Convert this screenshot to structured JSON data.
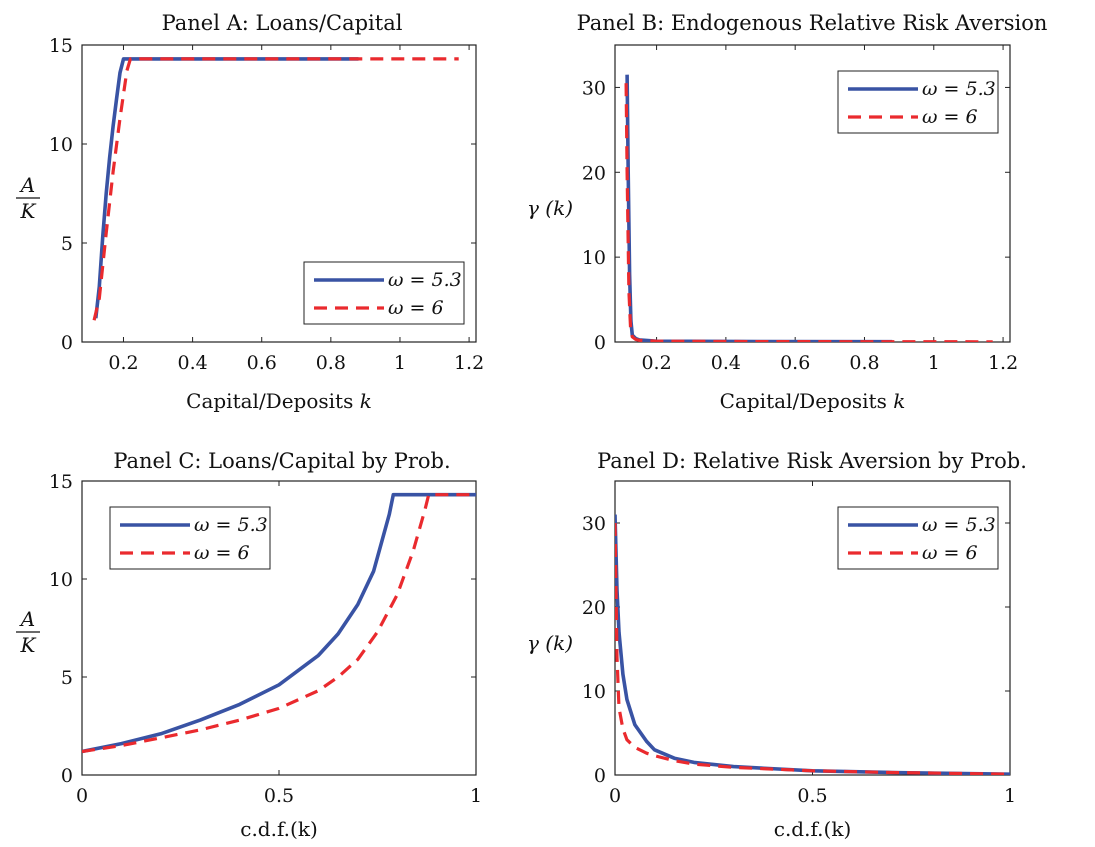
{
  "colors": {
    "series_1": "#3953a4",
    "series_2": "#ea2a2e"
  },
  "chart_data": [
    {
      "id": "panel-a",
      "type": "line",
      "title": "Panel A: Loans/Capital",
      "xlabel": "Capital/Deposits",
      "xlabel_var": "k",
      "ylabel_num": "A",
      "ylabel_den": "K",
      "xlim": [
        0.08,
        1.22
      ],
      "ylim": [
        0,
        15
      ],
      "xticks": [
        0.2,
        0.4,
        0.6,
        0.8,
        1,
        1.2
      ],
      "yticks": [
        0,
        5,
        10,
        15
      ],
      "grid": false,
      "legend_position": "bottom-right",
      "series": [
        {
          "name": "ω = 5.3",
          "style": "solid",
          "x": [
            0.12,
            0.13,
            0.14,
            0.15,
            0.16,
            0.17,
            0.18,
            0.19,
            0.2,
            0.4,
            0.6,
            0.88
          ],
          "y": [
            1.2,
            2.8,
            5.3,
            7.5,
            9.3,
            10.9,
            12.3,
            13.6,
            14.3,
            14.3,
            14.3,
            14.3
          ]
        },
        {
          "name": "ω = 6",
          "style": "dashed",
          "x": [
            0.115,
            0.13,
            0.15,
            0.17,
            0.19,
            0.21,
            0.22,
            0.5,
            0.8,
            1.17
          ],
          "y": [
            1.1,
            2.2,
            5.5,
            8.6,
            11.3,
            13.7,
            14.3,
            14.3,
            14.3,
            14.3
          ]
        }
      ]
    },
    {
      "id": "panel-b",
      "type": "line",
      "title": "Panel B: Endogenous Relative Risk Aversion",
      "xlabel": "Capital/Deposits",
      "xlabel_var": "k",
      "ylabel": "γ (k)",
      "xlim": [
        0.08,
        1.22
      ],
      "ylim": [
        0,
        35
      ],
      "xticks": [
        0.2,
        0.4,
        0.6,
        0.8,
        1,
        1.2
      ],
      "yticks": [
        0,
        10,
        20,
        30
      ],
      "grid": false,
      "legend_position": "top-right",
      "series": [
        {
          "name": "ω = 5.3",
          "style": "solid",
          "x": [
            0.115,
            0.118,
            0.122,
            0.126,
            0.13,
            0.14,
            0.15,
            0.2,
            0.5,
            0.88
          ],
          "y": [
            31.5,
            20,
            8,
            2.5,
            0.8,
            0.4,
            0.25,
            0.1,
            0.05,
            0.03
          ]
        },
        {
          "name": "ω = 6",
          "style": "dashed",
          "x": [
            0.112,
            0.115,
            0.12,
            0.125,
            0.13,
            0.14,
            0.15,
            0.2,
            0.5,
            1.17
          ],
          "y": [
            30.5,
            20,
            6,
            1.5,
            0.6,
            0.3,
            0.2,
            0.1,
            0.05,
            0.02
          ]
        }
      ]
    },
    {
      "id": "panel-c",
      "type": "line",
      "title": "Panel C: Loans/Capital by Prob.",
      "xlabel": "c.d.f.(k)",
      "ylabel_num": "A",
      "ylabel_den": "K",
      "xlim": [
        0,
        1
      ],
      "ylim": [
        0,
        15
      ],
      "xticks": [
        0,
        0.5,
        1
      ],
      "yticks": [
        0,
        5,
        10,
        15
      ],
      "grid": false,
      "legend_position": "top-left",
      "series": [
        {
          "name": "ω = 5.3",
          "style": "solid",
          "x": [
            0,
            0.1,
            0.2,
            0.3,
            0.4,
            0.5,
            0.6,
            0.65,
            0.7,
            0.74,
            0.78,
            0.79,
            0.85,
            0.9,
            1
          ],
          "y": [
            1.2,
            1.6,
            2.1,
            2.8,
            3.6,
            4.6,
            6.1,
            7.2,
            8.7,
            10.4,
            13.3,
            14.3,
            14.3,
            14.3,
            14.3
          ]
        },
        {
          "name": "ω = 6",
          "style": "dashed",
          "x": [
            0,
            0.1,
            0.2,
            0.3,
            0.4,
            0.5,
            0.6,
            0.65,
            0.7,
            0.75,
            0.8,
            0.84,
            0.87,
            0.88,
            0.95,
            1
          ],
          "y": [
            1.2,
            1.5,
            1.9,
            2.3,
            2.8,
            3.4,
            4.3,
            5.0,
            5.9,
            7.3,
            9.2,
            11.4,
            13.5,
            14.3,
            14.3,
            14.3
          ]
        }
      ]
    },
    {
      "id": "panel-d",
      "type": "line",
      "title": "Panel D: Relative Risk Aversion by Prob.",
      "xlabel": "c.d.f.(k)",
      "ylabel": "γ (k)",
      "xlim": [
        0,
        1
      ],
      "ylim": [
        0,
        35
      ],
      "xticks": [
        0,
        0.5,
        1
      ],
      "yticks": [
        0,
        10,
        20,
        30
      ],
      "grid": false,
      "legend_position": "top-right",
      "series": [
        {
          "name": "ω = 5.3",
          "style": "solid",
          "x": [
            0,
            0.005,
            0.01,
            0.02,
            0.03,
            0.05,
            0.08,
            0.1,
            0.15,
            0.2,
            0.3,
            0.5,
            0.7,
            1
          ],
          "y": [
            31,
            22,
            17,
            12,
            9,
            6,
            4,
            3,
            2,
            1.5,
            1,
            0.5,
            0.3,
            0.1
          ]
        },
        {
          "name": "ω = 6",
          "style": "dashed",
          "x": [
            0,
            0.005,
            0.01,
            0.02,
            0.03,
            0.05,
            0.08,
            0.1,
            0.15,
            0.2,
            0.3,
            0.5,
            0.7,
            1
          ],
          "y": [
            30,
            14,
            8,
            5.5,
            4.2,
            3.3,
            2.6,
            2.3,
            1.7,
            1.3,
            0.9,
            0.5,
            0.3,
            0.1
          ]
        }
      ]
    }
  ]
}
